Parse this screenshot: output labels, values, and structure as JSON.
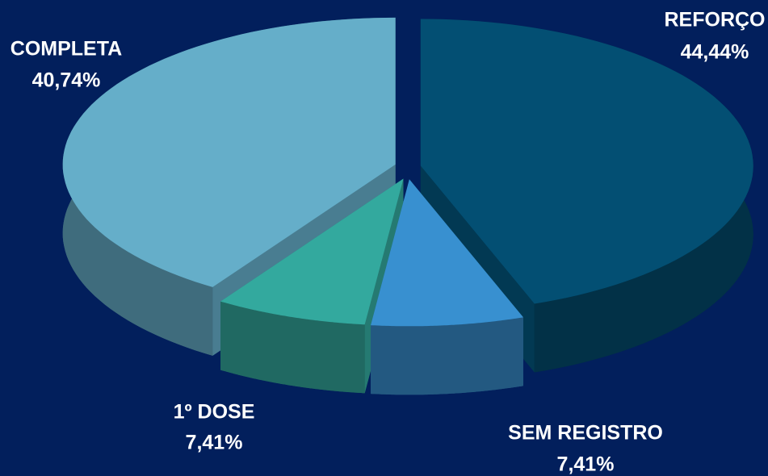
{
  "chart_data": {
    "type": "pie",
    "categories": [
      "REFORÇO",
      "SEM REGISTRO",
      "1º DOSE",
      "COMPLETA"
    ],
    "values": [
      44.44,
      7.41,
      7.41,
      40.74
    ],
    "value_labels": [
      "44,44%",
      "7,41%",
      "7,41%",
      "40,74%"
    ],
    "colors": [
      "#034f73",
      "#3890d0",
      "#33a99e",
      "#65aec9"
    ]
  }
}
